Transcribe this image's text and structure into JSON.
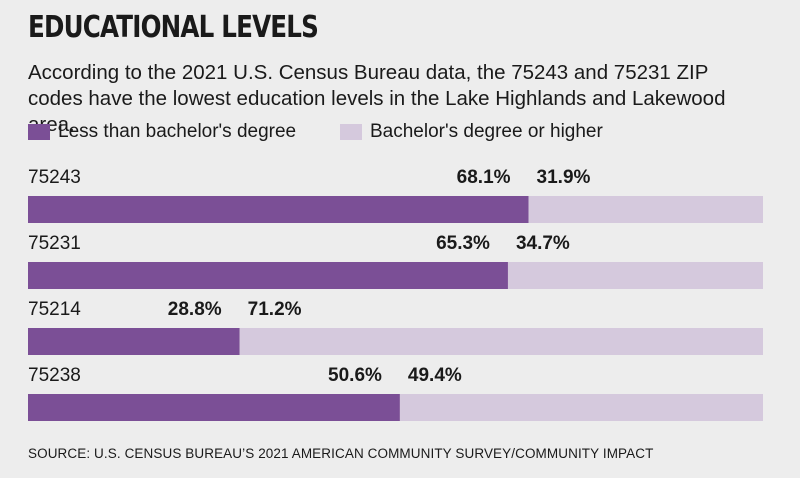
{
  "title": "EDUCATIONAL LEVELS",
  "subtitle": "According to the 2021 U.S. Census Bureau data, the 75243 and 75231 ZIP codes have the lowest education levels in the Lake Highlands and Lakewood area.",
  "source": "SOURCE: U.S. CENSUS BUREAU’S 2021 AMERICAN COMMUNITY SURVEY/COMMUNITY IMPACT",
  "colors": {
    "less_than_bachelors": "#7b4f96",
    "bachelors_or_higher": "#d5c9dd",
    "background": "#ededed",
    "text": "#1a1a1a"
  },
  "chart_data": {
    "type": "bar",
    "orientation": "horizontal",
    "stacked": true,
    "title": "EDUCATIONAL LEVELS",
    "categories": [
      "75243",
      "75231",
      "75214",
      "75238"
    ],
    "series": [
      {
        "name": "Less than bachelor's degree",
        "values": [
          68.1,
          65.3,
          28.8,
          50.6
        ],
        "labels": [
          "68.1%",
          "65.3%",
          "28.8%",
          "50.6%"
        ],
        "color": "#7b4f96"
      },
      {
        "name": "Bachelor's degree or higher",
        "values": [
          31.9,
          34.7,
          71.2,
          49.4
        ],
        "labels": [
          "31.9%",
          "34.7%",
          "71.2%",
          "49.4%"
        ],
        "color": "#d5c9dd"
      }
    ],
    "xlim": [
      0,
      100
    ],
    "xlabel": "",
    "ylabel": "",
    "grid": false,
    "legend_position": "top-left"
  }
}
